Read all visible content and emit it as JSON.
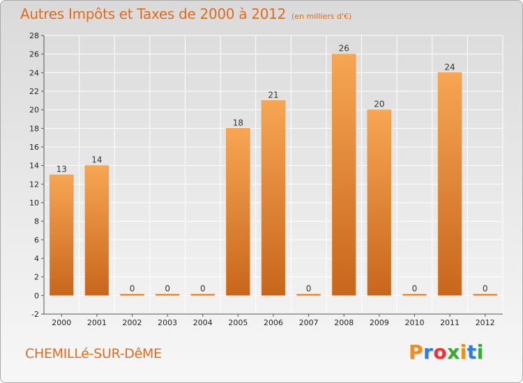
{
  "header": {
    "title": "Autres Impôts et Taxes de 2000 à 2012",
    "unit": "(en milliers d'€)"
  },
  "footer": {
    "commune": "CHEMILLé-SUR-DêME",
    "brand": "Proxiti",
    "brand_colors": [
      "#f28c1a",
      "#2c7fd4",
      "#e8343a",
      "#3aaa35",
      "#f28c1a",
      "#2c7fd4",
      "#3aaa35"
    ]
  },
  "colors": {
    "bar_light": "#f7a653",
    "bar_dark": "#c8661c",
    "grid": "#ffffff",
    "axis": "#555555",
    "text_accent": "#e06a1d"
  },
  "chart_data": {
    "type": "bar",
    "title": "Autres Impôts et Taxes de 2000 à 2012",
    "subtitle": "(en milliers d'€)",
    "categories": [
      "2000",
      "2001",
      "2002",
      "2003",
      "2004",
      "2005",
      "2006",
      "2007",
      "2008",
      "2009",
      "2010",
      "2011",
      "2012"
    ],
    "values": [
      13,
      14,
      0,
      0,
      0,
      18,
      21,
      0,
      26,
      20,
      0,
      24,
      0
    ],
    "data_labels": [
      "13",
      "14",
      "0",
      "0",
      "0",
      "18",
      "21",
      "0",
      "26",
      "20",
      "0",
      "24",
      "0"
    ],
    "ylim": [
      -2,
      28
    ],
    "yticks": [
      -2,
      0,
      2,
      4,
      6,
      8,
      10,
      12,
      14,
      16,
      18,
      20,
      22,
      24,
      26,
      28
    ],
    "xlabel": "",
    "ylabel": "",
    "grid": true,
    "legend": "none"
  }
}
